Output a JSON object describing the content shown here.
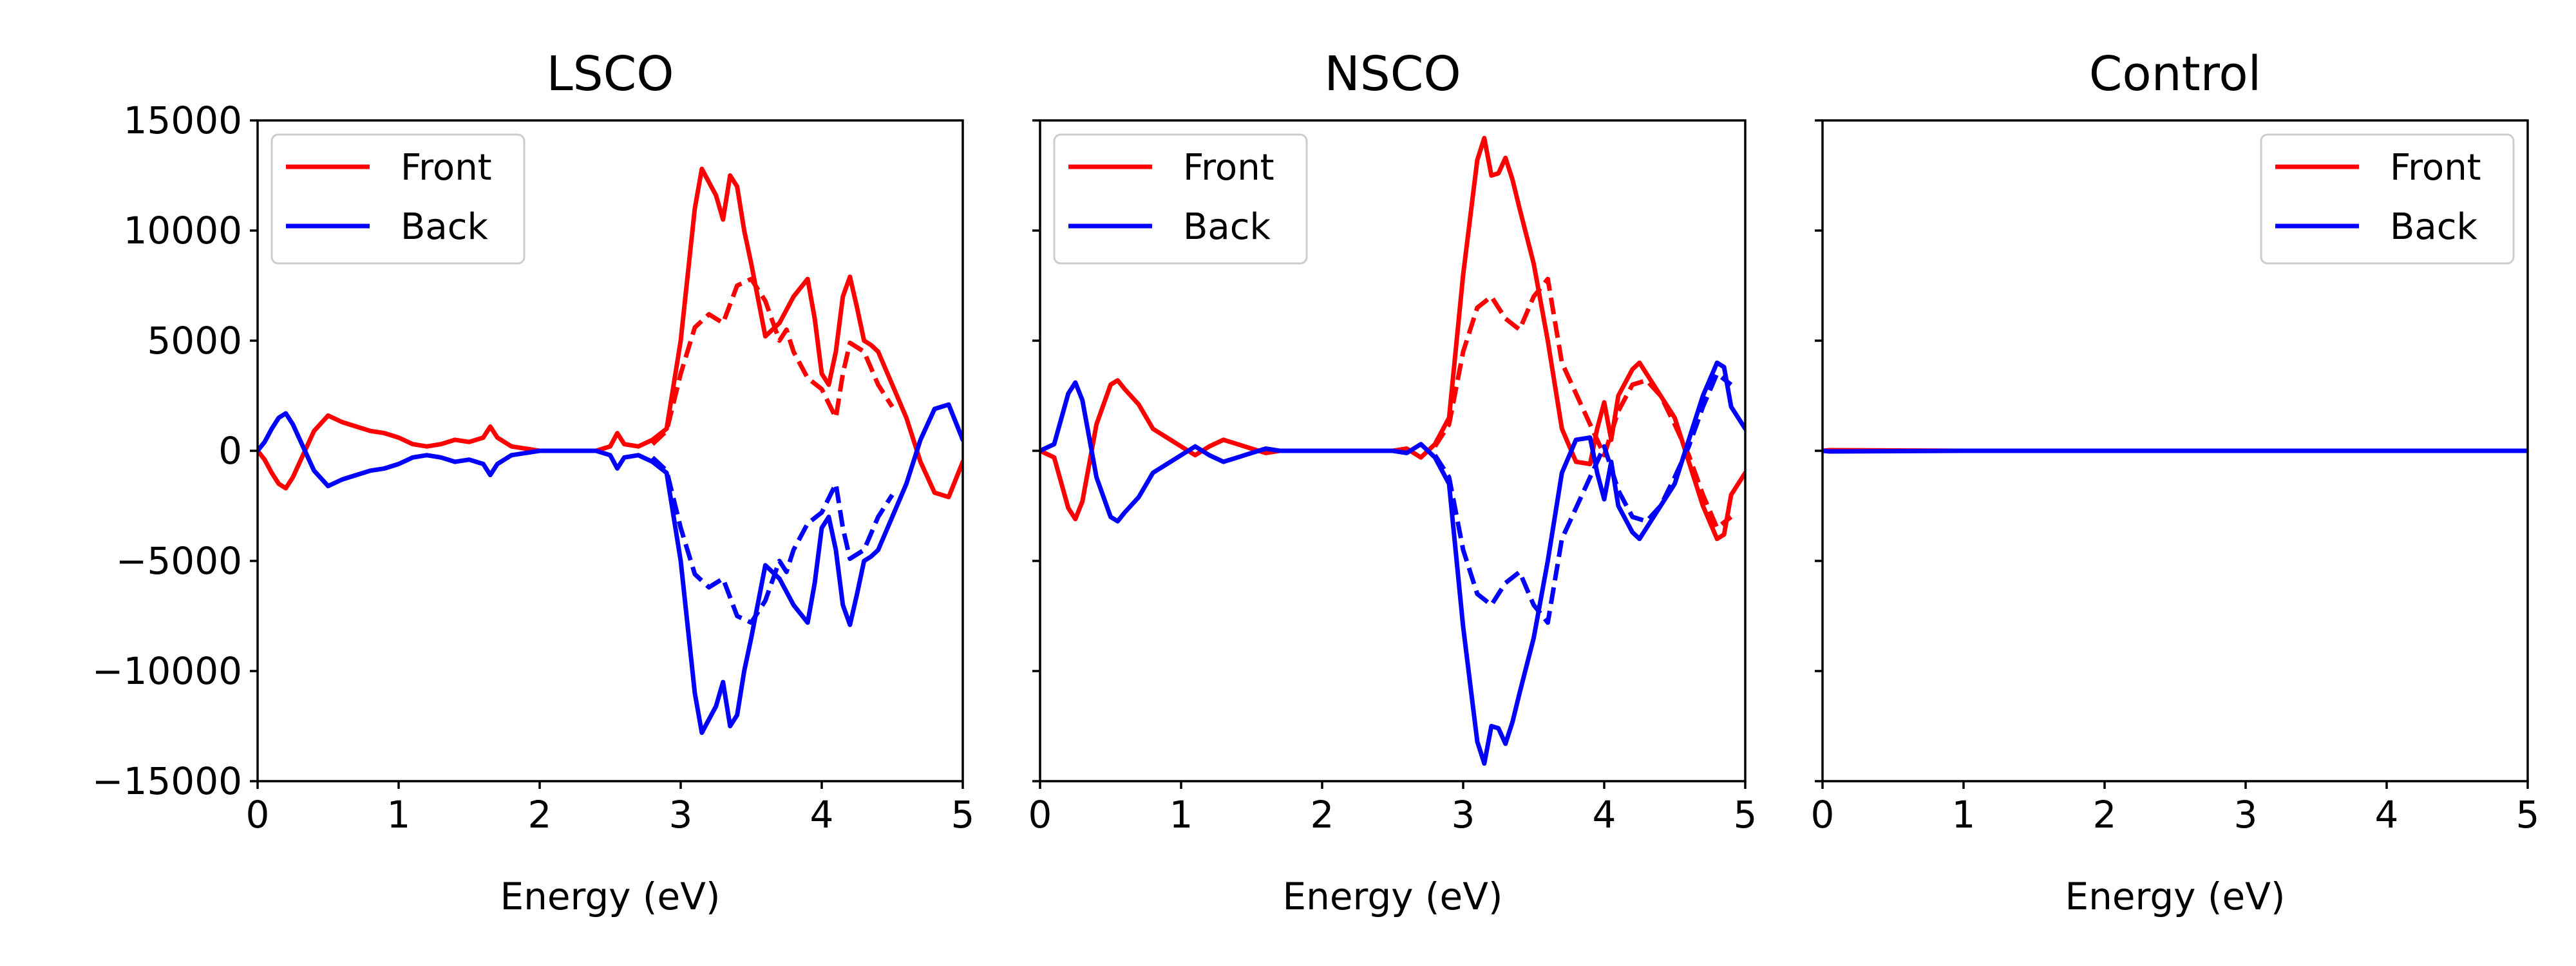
{
  "chart_data": [
    {
      "type": "line",
      "title": "LSCO",
      "xlabel": "Energy (eV)",
      "ylabel": "",
      "xlim": [
        0,
        5
      ],
      "ylim": [
        -15000,
        15000
      ],
      "xticks": [
        "0",
        "1",
        "2",
        "3",
        "4",
        "5"
      ],
      "yticks": [
        "15000",
        "10000",
        "5000",
        "0",
        "−5000",
        "−10000",
        "−15000"
      ],
      "legend": {
        "position": "top-left",
        "entries": [
          {
            "label": "Front",
            "color": "#ff0000"
          },
          {
            "label": "Back",
            "color": "#0000ff"
          }
        ]
      },
      "series": [
        {
          "name": "Front",
          "color": "#ff0000",
          "style": "solid",
          "x": [
            0,
            0.05,
            0.1,
            0.15,
            0.2,
            0.25,
            0.3,
            0.4,
            0.5,
            0.6,
            0.7,
            0.8,
            0.9,
            1.0,
            1.1,
            1.2,
            1.3,
            1.4,
            1.5,
            1.6,
            1.65,
            1.7,
            1.8,
            1.9,
            2.0,
            2.2,
            2.4,
            2.5,
            2.55,
            2.6,
            2.7,
            2.8,
            2.9,
            3.0,
            3.1,
            3.15,
            3.2,
            3.25,
            3.3,
            3.35,
            3.4,
            3.45,
            3.5,
            3.6,
            3.7,
            3.8,
            3.9,
            3.95,
            4.0,
            4.05,
            4.1,
            4.15,
            4.2,
            4.25,
            4.3,
            4.35,
            4.4,
            4.5,
            4.6,
            4.7,
            4.8,
            4.9,
            5.0
          ],
          "y": [
            0,
            -400,
            -1000,
            -1500,
            -1700,
            -1200,
            -500,
            900,
            1600,
            1300,
            1100,
            900,
            800,
            600,
            300,
            200,
            300,
            500,
            400,
            600,
            1100,
            600,
            200,
            100,
            0,
            0,
            0,
            200,
            800,
            300,
            200,
            500,
            1000,
            5000,
            11000,
            12800,
            12200,
            11600,
            10500,
            12500,
            12000,
            10000,
            8500,
            5200,
            5800,
            7000,
            7800,
            6000,
            3500,
            3000,
            4500,
            7000,
            7900,
            6500,
            5000,
            4800,
            4500,
            3000,
            1500,
            -500,
            -1900,
            -2100,
            -500
          ]
        },
        {
          "name": "Back",
          "color": "#0000ff",
          "style": "solid",
          "x": [
            0,
            0.05,
            0.1,
            0.15,
            0.2,
            0.25,
            0.3,
            0.4,
            0.5,
            0.6,
            0.7,
            0.8,
            0.9,
            1.0,
            1.1,
            1.2,
            1.3,
            1.4,
            1.5,
            1.6,
            1.65,
            1.7,
            1.8,
            1.9,
            2.0,
            2.2,
            2.4,
            2.5,
            2.55,
            2.6,
            2.7,
            2.8,
            2.9,
            3.0,
            3.1,
            3.15,
            3.2,
            3.25,
            3.3,
            3.35,
            3.4,
            3.45,
            3.5,
            3.6,
            3.7,
            3.8,
            3.9,
            3.95,
            4.0,
            4.05,
            4.1,
            4.15,
            4.2,
            4.25,
            4.3,
            4.35,
            4.4,
            4.5,
            4.6,
            4.7,
            4.8,
            4.9,
            5.0
          ],
          "y": [
            0,
            400,
            1000,
            1500,
            1700,
            1200,
            500,
            -900,
            -1600,
            -1300,
            -1100,
            -900,
            -800,
            -600,
            -300,
            -200,
            -300,
            -500,
            -400,
            -600,
            -1100,
            -600,
            -200,
            -100,
            0,
            0,
            0,
            -200,
            -800,
            -300,
            -200,
            -500,
            -1000,
            -5000,
            -11000,
            -12800,
            -12200,
            -11600,
            -10500,
            -12500,
            -12000,
            -10000,
            -8500,
            -5200,
            -5800,
            -7000,
            -7800,
            -6000,
            -3500,
            -3000,
            -4500,
            -7000,
            -7900,
            -6500,
            -5000,
            -4800,
            -4500,
            -3000,
            -1500,
            500,
            1900,
            2100,
            500
          ]
        },
        {
          "name": "",
          "color": "#ff0000",
          "style": "dashed",
          "x": [
            2.8,
            2.9,
            3.0,
            3.1,
            3.2,
            3.3,
            3.4,
            3.5,
            3.6,
            3.7,
            3.75,
            3.8,
            3.9,
            4.0,
            4.1,
            4.15,
            4.2,
            4.3,
            4.4,
            4.5
          ],
          "y": [
            300,
            900,
            3500,
            5600,
            6200,
            5800,
            7500,
            7800,
            6800,
            5000,
            5500,
            4500,
            3300,
            2800,
            1500,
            3500,
            4900,
            4500,
            3000,
            2000
          ]
        },
        {
          "name": "",
          "color": "#0000ff",
          "style": "dashed",
          "x": [
            2.8,
            2.9,
            3.0,
            3.1,
            3.2,
            3.3,
            3.4,
            3.5,
            3.6,
            3.7,
            3.75,
            3.8,
            3.9,
            4.0,
            4.1,
            4.15,
            4.2,
            4.3,
            4.4,
            4.5
          ],
          "y": [
            -300,
            -900,
            -3500,
            -5600,
            -6200,
            -5800,
            -7500,
            -7800,
            -6800,
            -5000,
            -5500,
            -4500,
            -3300,
            -2800,
            -1500,
            -3500,
            -4900,
            -4500,
            -3000,
            -2000
          ]
        }
      ]
    },
    {
      "type": "line",
      "title": "NSCO",
      "xlabel": "Energy (eV)",
      "ylabel": "",
      "xlim": [
        0,
        5
      ],
      "ylim": [
        -15000,
        15000
      ],
      "xticks": [
        "0",
        "1",
        "2",
        "3",
        "4",
        "5"
      ],
      "yticks": [],
      "legend": {
        "position": "top-left",
        "entries": [
          {
            "label": "Front",
            "color": "#ff0000"
          },
          {
            "label": "Back",
            "color": "#0000ff"
          }
        ]
      },
      "series": [
        {
          "name": "Front",
          "color": "#ff0000",
          "style": "solid",
          "x": [
            0,
            0.1,
            0.2,
            0.25,
            0.3,
            0.4,
            0.5,
            0.55,
            0.6,
            0.7,
            0.8,
            0.9,
            1.0,
            1.1,
            1.2,
            1.3,
            1.4,
            1.5,
            1.6,
            1.7,
            2.0,
            2.5,
            2.6,
            2.7,
            2.8,
            2.9,
            3.0,
            3.1,
            3.15,
            3.2,
            3.25,
            3.3,
            3.35,
            3.4,
            3.5,
            3.6,
            3.7,
            3.8,
            3.9,
            3.95,
            4.0,
            4.05,
            4.1,
            4.2,
            4.25,
            4.3,
            4.4,
            4.5,
            4.6,
            4.7,
            4.8,
            4.85,
            4.9,
            5.0
          ],
          "y": [
            0,
            -300,
            -2600,
            -3100,
            -2300,
            1200,
            3000,
            3200,
            2800,
            2100,
            1000,
            600,
            200,
            -200,
            200,
            500,
            300,
            100,
            -100,
            0,
            0,
            0,
            100,
            -300,
            300,
            1500,
            8000,
            13200,
            14200,
            12500,
            12600,
            13300,
            12300,
            11000,
            8500,
            5000,
            1000,
            -500,
            -600,
            1000,
            2200,
            500,
            2500,
            3700,
            4000,
            3500,
            2500,
            1500,
            -500,
            -2500,
            -4000,
            -3800,
            -2000,
            -1000
          ]
        },
        {
          "name": "Back",
          "color": "#0000ff",
          "style": "solid",
          "x": [
            0,
            0.1,
            0.2,
            0.25,
            0.3,
            0.4,
            0.5,
            0.55,
            0.6,
            0.7,
            0.8,
            0.9,
            1.0,
            1.1,
            1.2,
            1.3,
            1.4,
            1.5,
            1.6,
            1.7,
            2.0,
            2.5,
            2.6,
            2.7,
            2.8,
            2.9,
            3.0,
            3.1,
            3.15,
            3.2,
            3.25,
            3.3,
            3.35,
            3.4,
            3.5,
            3.6,
            3.7,
            3.8,
            3.9,
            3.95,
            4.0,
            4.05,
            4.1,
            4.2,
            4.25,
            4.3,
            4.4,
            4.5,
            4.6,
            4.7,
            4.8,
            4.85,
            4.9,
            5.0
          ],
          "y": [
            0,
            300,
            2600,
            3100,
            2300,
            -1200,
            -3000,
            -3200,
            -2800,
            -2100,
            -1000,
            -600,
            -200,
            200,
            -200,
            -500,
            -300,
            -100,
            100,
            0,
            0,
            0,
            -100,
            300,
            -300,
            -1500,
            -8000,
            -13200,
            -14200,
            -12500,
            -12600,
            -13300,
            -12300,
            -11000,
            -8500,
            -5000,
            -1000,
            500,
            600,
            -1000,
            -2200,
            -500,
            -2500,
            -3700,
            -4000,
            -3500,
            -2500,
            -1500,
            500,
            2500,
            4000,
            3800,
            2000,
            1000
          ]
        },
        {
          "name": "",
          "color": "#ff0000",
          "style": "dashed",
          "x": [
            2.8,
            2.9,
            3.0,
            3.1,
            3.2,
            3.3,
            3.4,
            3.5,
            3.6,
            3.7,
            4.0,
            4.1,
            4.2,
            4.3,
            4.4,
            4.5,
            4.6,
            4.7,
            4.8,
            4.9
          ],
          "y": [
            200,
            1200,
            4500,
            6500,
            7000,
            6000,
            5500,
            7000,
            7800,
            4000,
            -200,
            1800,
            3000,
            3200,
            2500,
            1200,
            -200,
            -2000,
            -3500,
            -3000
          ]
        },
        {
          "name": "",
          "color": "#0000ff",
          "style": "dashed",
          "x": [
            2.8,
            2.9,
            3.0,
            3.1,
            3.2,
            3.3,
            3.4,
            3.5,
            3.6,
            3.7,
            4.0,
            4.1,
            4.2,
            4.3,
            4.4,
            4.5,
            4.6,
            4.7,
            4.8,
            4.9
          ],
          "y": [
            -200,
            -1200,
            -4500,
            -6500,
            -7000,
            -6000,
            -5500,
            -7000,
            -7800,
            -4000,
            200,
            -1800,
            -3000,
            -3200,
            -2500,
            -1200,
            200,
            2000,
            3500,
            3000
          ]
        }
      ]
    },
    {
      "type": "line",
      "title": "Control",
      "xlabel": "Energy (eV)",
      "ylabel": "",
      "xlim": [
        0,
        5
      ],
      "ylim": [
        -15000,
        15000
      ],
      "xticks": [
        "0",
        "1",
        "2",
        "3",
        "4",
        "5"
      ],
      "yticks": [],
      "legend": {
        "position": "top-right",
        "entries": [
          {
            "label": "Front",
            "color": "#ff0000"
          },
          {
            "label": "Back",
            "color": "#0000ff"
          }
        ]
      },
      "series": [
        {
          "name": "Front",
          "color": "#ff0000",
          "style": "solid",
          "x": [
            0,
            0.05,
            1,
            2,
            3,
            4,
            5
          ],
          "y": [
            0,
            30,
            0,
            0,
            0,
            0,
            0
          ]
        },
        {
          "name": "Back",
          "color": "#0000ff",
          "style": "solid",
          "x": [
            0,
            0.05,
            1,
            2,
            3,
            4,
            5
          ],
          "y": [
            0,
            -30,
            0,
            0,
            0,
            0,
            0
          ]
        }
      ]
    }
  ]
}
